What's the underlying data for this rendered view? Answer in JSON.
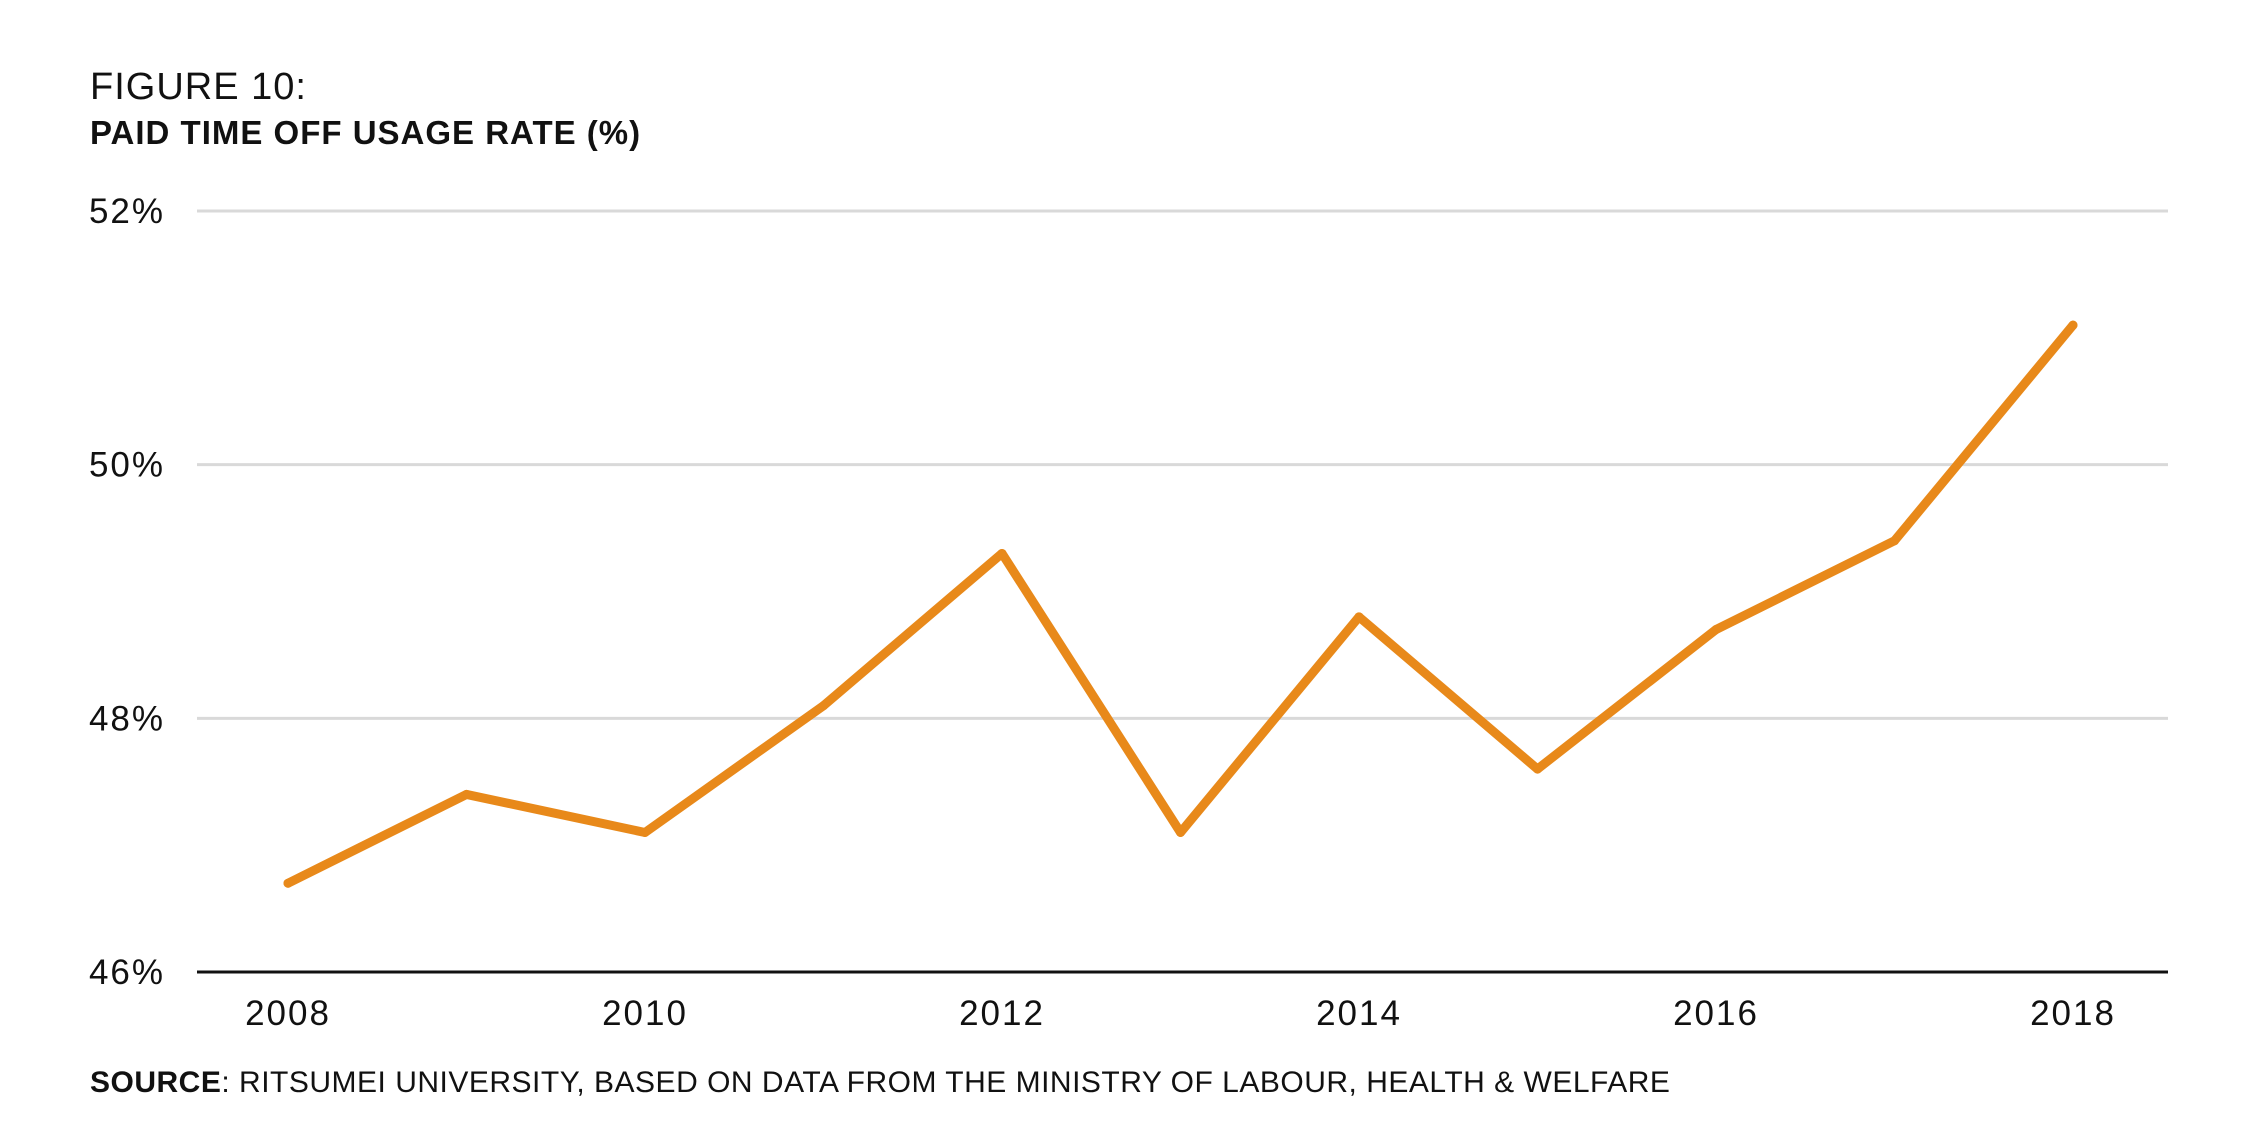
{
  "header": {
    "figure_label": "FIGURE 10:",
    "title": "PAID TIME OFF USAGE RATE (%)"
  },
  "source": {
    "label": "SOURCE",
    "text": ": RITSUMEI UNIVERSITY, BASED ON DATA FROM THE MINISTRY OF LABOUR, HEALTH & WELFARE"
  },
  "colors": {
    "line": "#E8891A",
    "grid": "#d9d9d9",
    "axis": "#111111"
  },
  "chart_data": {
    "type": "line",
    "title": "PAID TIME OFF USAGE RATE (%)",
    "xlabel": "",
    "ylabel": "",
    "x": [
      2008,
      2009,
      2010,
      2011,
      2012,
      2013,
      2014,
      2015,
      2016,
      2017,
      2018
    ],
    "series": [
      {
        "values": [
          46.7,
          47.4,
          47.1,
          48.1,
          49.3,
          47.1,
          48.8,
          47.6,
          48.7,
          49.4,
          51.1
        ]
      }
    ],
    "ylim": [
      46,
      52
    ],
    "y_ticks": [
      46,
      48,
      50,
      52
    ],
    "y_tick_labels": [
      "46%",
      "48%",
      "50%",
      "52%"
    ],
    "x_ticks": [
      2008,
      2010,
      2012,
      2014,
      2016,
      2018
    ],
    "x_tick_labels": [
      "2008",
      "2010",
      "2012",
      "2014",
      "2016",
      "2018"
    ],
    "grid": true,
    "legend": "none"
  }
}
